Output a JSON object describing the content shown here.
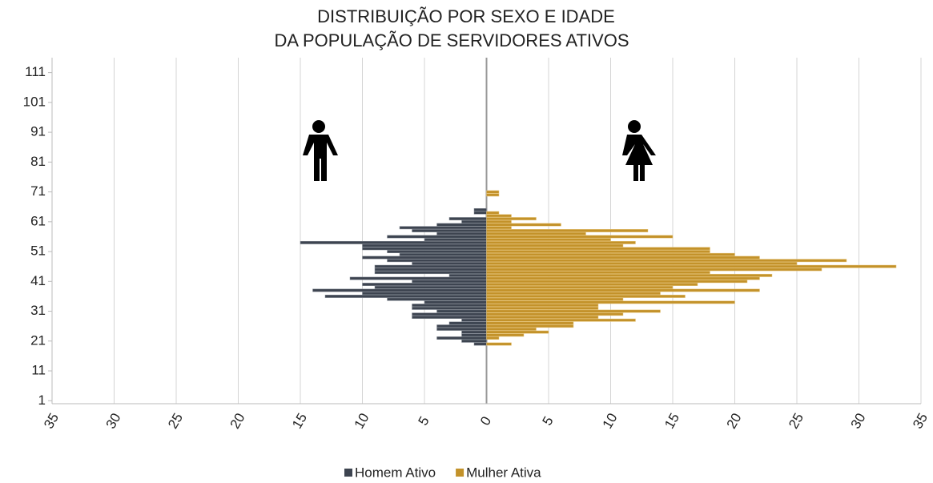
{
  "chart_data": {
    "type": "bar",
    "orientation": "horizontal",
    "title": [
      "DISTRIBUIÇÃO POR SEXO E IDADE",
      "DA POPULAÇÃO DE SERVIDORES ATIVOS"
    ],
    "y": [
      20,
      21,
      22,
      23,
      24,
      25,
      26,
      27,
      28,
      29,
      30,
      31,
      32,
      33,
      34,
      35,
      36,
      37,
      38,
      39,
      40,
      41,
      42,
      43,
      44,
      45,
      46,
      47,
      48,
      49,
      50,
      51,
      52,
      53,
      54,
      55,
      56,
      57,
      58,
      59,
      60,
      61,
      62,
      63,
      64,
      65,
      66,
      67,
      68,
      69,
      70,
      71
    ],
    "series": [
      {
        "name": "Homem Ativo",
        "color": "#3d4450",
        "values": [
          -1,
          -2,
          -4,
          -2,
          -2,
          -4,
          -4,
          -3,
          -2,
          -6,
          -6,
          -4,
          -6,
          -6,
          -5,
          -8,
          -13,
          -10,
          -14,
          -9,
          -10,
          -6,
          -11,
          -3,
          -9,
          -9,
          -9,
          -6,
          -8,
          -10,
          -7,
          -8,
          -10,
          -10,
          -15,
          -5,
          -8,
          -4,
          -6,
          -7,
          -4,
          -2,
          -3,
          0,
          -1,
          -1,
          0,
          0,
          0,
          0,
          0,
          0
        ]
      },
      {
        "name": "Mulher Ativa",
        "color": "#c3922a",
        "values": [
          2,
          0,
          1,
          3,
          5,
          4,
          7,
          7,
          12,
          9,
          11,
          14,
          9,
          9,
          20,
          11,
          16,
          14,
          22,
          15,
          17,
          21,
          22,
          23,
          18,
          27,
          33,
          25,
          29,
          22,
          20,
          18,
          18,
          11,
          12,
          10,
          15,
          8,
          13,
          2,
          6,
          2,
          4,
          2,
          1,
          0,
          0,
          0,
          0,
          0,
          1,
          1
        ]
      }
    ],
    "xlim": [
      -35,
      35
    ],
    "xticks": [
      {
        "value": -35,
        "label": "35"
      },
      {
        "value": -30,
        "label": "30"
      },
      {
        "value": -25,
        "label": "25"
      },
      {
        "value": -20,
        "label": "20"
      },
      {
        "value": -15,
        "label": "15"
      },
      {
        "value": -10,
        "label": "10"
      },
      {
        "value": -5,
        "label": "5"
      },
      0,
      5,
      10,
      15,
      20,
      25,
      30,
      35
    ],
    "ylim": [
      0,
      116
    ],
    "yticks": [
      1,
      11,
      21,
      31,
      41,
      51,
      61,
      71,
      81,
      91,
      101,
      111
    ],
    "grid": true
  }
}
